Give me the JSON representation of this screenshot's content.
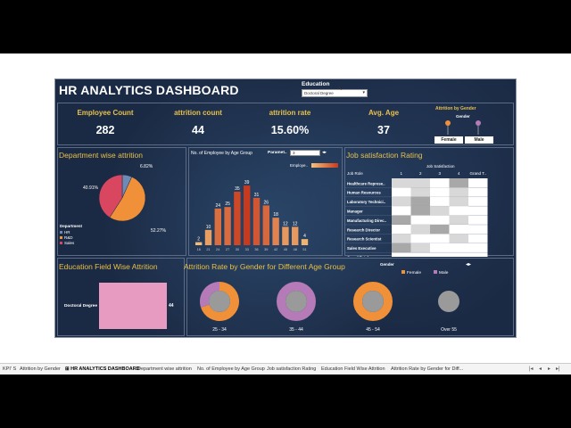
{
  "dashboard": {
    "title": "HR ANALYTICS DASHBOARD",
    "education_filter": {
      "label": "Education",
      "value": "Doctoral Degree"
    }
  },
  "kpis": [
    {
      "label": "Employee Count",
      "value": "282"
    },
    {
      "label": "attrition count",
      "value": "44"
    },
    {
      "label": "attrition rate",
      "value": "15.60%"
    },
    {
      "label": "Avg. Age",
      "value": "37"
    }
  ],
  "gender_filter": {
    "title": "Attrition by Gender",
    "axis_label": "Gender",
    "female": "Female",
    "male": "Male"
  },
  "chart_data": [
    {
      "type": "pie",
      "title": "Department wise attrition",
      "legend_title": "Department",
      "labels": [
        "HR",
        "R&D",
        "Sales"
      ],
      "values": [
        6.82,
        52.27,
        40.91
      ],
      "value_labels": [
        "6.82%",
        "52.27%",
        "40.91%"
      ],
      "colors": [
        "#6d8bb5",
        "#f0913a",
        "#d84660"
      ]
    },
    {
      "type": "bar",
      "title": "No. of Employee  by Age Group",
      "parameter_label": "Paramet..",
      "parameter_value": "3",
      "legend_label": "Employe..",
      "categories": [
        "18",
        "21",
        "24",
        "27",
        "30",
        "33",
        "36",
        "39",
        "42",
        "45",
        "48",
        "51",
        "54",
        "57",
        "60"
      ],
      "visible_tick_labels": [
        "18",
        "21",
        "24",
        "27",
        "30",
        "33",
        "36",
        "39",
        "42",
        "45",
        "48",
        "51"
      ],
      "values": [
        2,
        10,
        24,
        25,
        35,
        39,
        31,
        26,
        18,
        12,
        12,
        4,
        0,
        0,
        0
      ],
      "data_labels": [
        "2",
        "10",
        "24",
        "25",
        "35",
        "39",
        "31",
        "26",
        "18",
        "12",
        "12",
        "4",
        "",
        "",
        ""
      ],
      "ylim": [
        0,
        42
      ]
    },
    {
      "type": "heatmap",
      "title": "Job satisfaction Rating",
      "column_header": "Job Satisfaction",
      "row_header": "Job Role",
      "columns": [
        "1",
        "2",
        "3",
        "4",
        "Grand T.."
      ],
      "rows": [
        "Healthcare Represe..",
        "Human Resources",
        "Laboratory Technici..",
        "Manager",
        "Manufacturing Direc..",
        "Research Director",
        "Research Scientist",
        "Sales Executive",
        "Grand Total"
      ],
      "shading": [
        [
          0,
          0,
          1,
          2
        ],
        [
          1,
          0,
          1,
          0
        ],
        [
          0,
          2,
          1,
          0
        ],
        [
          1,
          2,
          0,
          1
        ],
        [
          2,
          1,
          1,
          0
        ],
        [
          1,
          0,
          2,
          1
        ],
        [
          0,
          1,
          1,
          0
        ],
        [
          2,
          0,
          1,
          1
        ]
      ]
    },
    {
      "type": "bar",
      "title": "Education  Field Wise Attrition",
      "categories": [
        "Doctoral Degree"
      ],
      "values": [
        44
      ],
      "data_labels": [
        "44"
      ]
    },
    {
      "type": "pie",
      "title": "Attrition  Rate  by Gender for Different Age Group",
      "legend_title": "Gender",
      "legend": [
        "Female",
        "Male"
      ],
      "groups": [
        {
          "label": "25 - 34",
          "female": 70,
          "male": 30
        },
        {
          "label": "35 - 44",
          "female": 0,
          "male": 100
        },
        {
          "label": "45 - 54",
          "female": 100,
          "male": 0
        },
        {
          "label": "Over 55",
          "female": 0,
          "male": 0
        }
      ]
    }
  ],
  "colors": {
    "accent": "#e8c04a",
    "female": "#f0913a",
    "male": "#b57ab8",
    "bg": "#1b2a44"
  },
  "tabs": [
    "KPI' S",
    "Attrition by Gender",
    "HR ANALYTICS DASHBOARD",
    "Department wise attrition",
    "No. of Employee  by Age Group",
    "Job satisfaction Rating",
    "Education  Field Wise Attrition",
    "Attrition  Rate  by Gender for Diff..."
  ],
  "active_tab": 2
}
